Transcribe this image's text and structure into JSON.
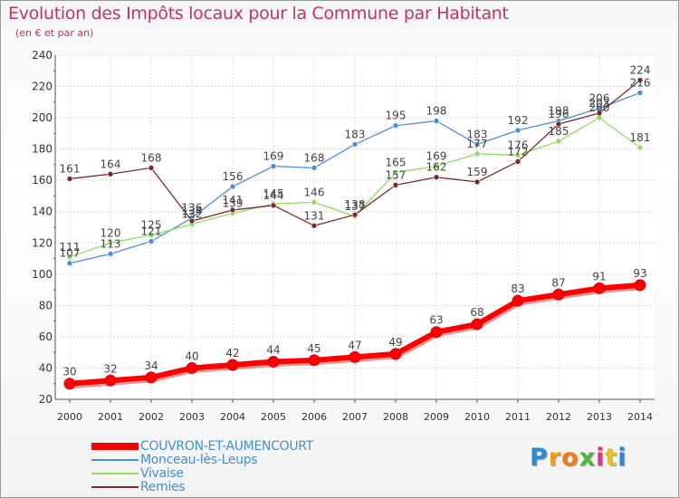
{
  "header": {
    "title": "Evolution des Impôts locaux pour la Commune par Habitant",
    "subtitle": "(en € et par an)"
  },
  "chart_data": {
    "type": "line",
    "title": "Evolution des Impôts locaux pour la Commune par Habitant",
    "subtitle": "(en € et par an)",
    "xlabel": "",
    "ylabel": "",
    "x": [
      "2000",
      "2001",
      "2002",
      "2003",
      "2004",
      "2005",
      "2006",
      "2007",
      "2008",
      "2009",
      "2010",
      "2011",
      "2012",
      "2013",
      "2014"
    ],
    "ylim": [
      20,
      240
    ],
    "yticks": [
      "20",
      "40",
      "60",
      "80",
      "100",
      "120",
      "140",
      "160",
      "180",
      "200",
      "220",
      "240"
    ],
    "grid": true,
    "legend_position": "bottom-left",
    "series": [
      {
        "name": "COUVRON-ET-AUMENCOURT",
        "color": "#ff0000",
        "values": [
          30,
          32,
          34,
          40,
          42,
          44,
          45,
          47,
          49,
          63,
          68,
          83,
          87,
          91,
          93
        ],
        "labels": [
          "30",
          "32",
          "34",
          "40",
          "42",
          "44",
          "45",
          "47",
          "49",
          "63",
          "68",
          "83",
          "87",
          "91",
          "93"
        ]
      },
      {
        "name": "Monceau-lès-Leups",
        "color": "#4a90d9",
        "values": [
          107,
          113,
          121,
          136,
          156,
          169,
          168,
          183,
          195,
          198,
          183,
          192,
          198,
          206,
          216
        ],
        "labels": [
          "107",
          "113",
          "121",
          "136",
          "156",
          "169",
          "168",
          "183",
          "195",
          "198",
          "183",
          "192",
          "198",
          "206",
          "216"
        ]
      },
      {
        "name": "Vivaise",
        "color": "#8fdc5f",
        "values": [
          111,
          120,
          125,
          132,
          139,
          145,
          146,
          137,
          165,
          169,
          177,
          176,
          185,
          200,
          181
        ],
        "labels": [
          "111",
          "120",
          "125",
          "132",
          "139",
          "145",
          "146",
          "137",
          "165",
          "169",
          "177",
          "176",
          "185",
          "200",
          "181"
        ]
      },
      {
        "name": "Remies",
        "color": "#7a2a2a",
        "values": [
          161,
          164,
          168,
          134,
          141,
          144,
          131,
          138,
          157,
          162,
          159,
          172,
          196,
          203,
          224
        ],
        "labels": [
          "161",
          "164",
          "168",
          "134",
          "141",
          "144",
          "131",
          "138",
          "157",
          "162",
          "159",
          "172",
          "196",
          "203",
          "224"
        ]
      }
    ]
  },
  "legend": {
    "items": [
      {
        "label": "COUVRON-ET-AUMENCOURT",
        "color": "#ff0000"
      },
      {
        "label": "Monceau-lès-Leups",
        "color": "#4a90d9"
      },
      {
        "label": "Vivaise",
        "color": "#8fdc5f"
      },
      {
        "label": "Remies",
        "color": "#7a2a2a"
      }
    ]
  },
  "logo": {
    "letters": [
      "P",
      "r",
      "o",
      "x",
      "i",
      "t",
      "i"
    ],
    "colors": [
      "#2a8ad4",
      "#e8a21a",
      "#f07c18",
      "#4cba3a",
      "#d43a8a",
      "#e8c21a",
      "#2a8ad4"
    ]
  }
}
